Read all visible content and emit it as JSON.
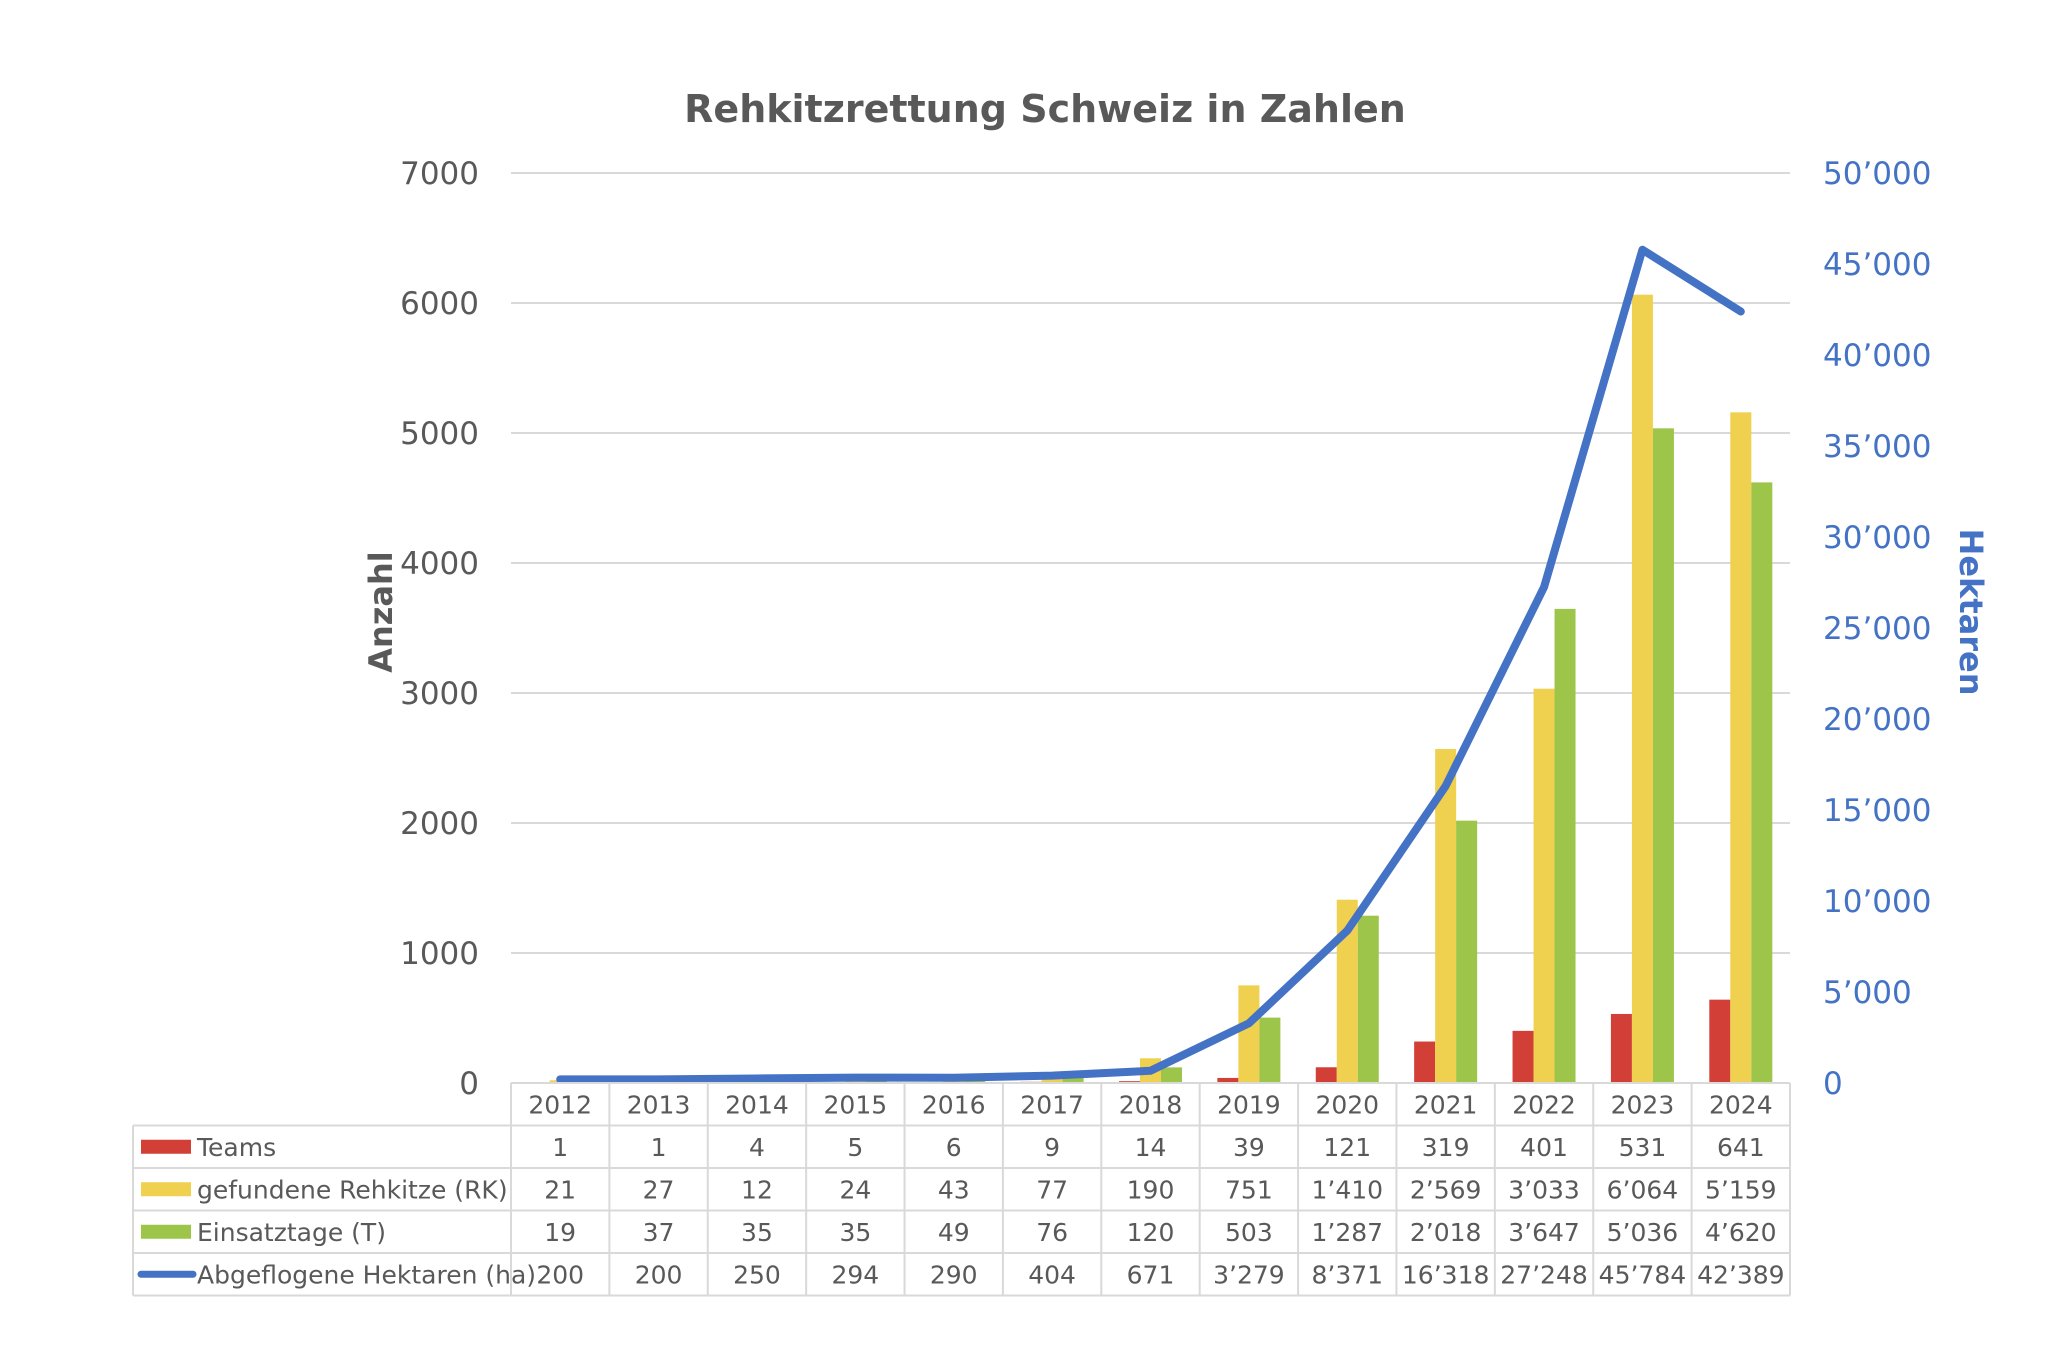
{
  "chart_data": {
    "type": "bar",
    "title": "Rehkitzrettung Schweiz in Zahlen",
    "ylabel": "Anzahl",
    "y2label": "Hektaren",
    "ylim": [
      0,
      7000
    ],
    "y2lim": [
      0,
      50000
    ],
    "yticks": [
      "0",
      "1000",
      "2000",
      "3000",
      "4000",
      "5000",
      "6000",
      "7000"
    ],
    "y2ticks": [
      "0",
      "5’000",
      "10’000",
      "15’000",
      "20’000",
      "25’000",
      "30’000",
      "35’000",
      "40’000",
      "45’000",
      "50’000"
    ],
    "grid": true,
    "legend": "data-table-below",
    "categories": [
      "2012",
      "2013",
      "2014",
      "2015",
      "2016",
      "2017",
      "2018",
      "2019",
      "2020",
      "2021",
      "2022",
      "2023",
      "2024"
    ],
    "series": [
      {
        "name": "Teams",
        "type": "bar",
        "axis": "left",
        "color": "#D13F36",
        "values": [
          1,
          1,
          4,
          5,
          6,
          9,
          14,
          39,
          121,
          319,
          401,
          531,
          641
        ],
        "labels": [
          "1",
          "1",
          "4",
          "5",
          "6",
          "9",
          "14",
          "39",
          "121",
          "319",
          "401",
          "531",
          "641"
        ]
      },
      {
        "name": "gefundene Rehkitze (RK)",
        "type": "bar",
        "axis": "left",
        "color": "#EFD04F",
        "values": [
          21,
          27,
          12,
          24,
          43,
          77,
          190,
          751,
          1410,
          2569,
          3033,
          6064,
          5159
        ],
        "labels": [
          "21",
          "27",
          "12",
          "24",
          "43",
          "77",
          "190",
          "751",
          "1’410",
          "2’569",
          "3’033",
          "6’064",
          "5’159"
        ]
      },
      {
        "name": "Einsatztage (T)",
        "type": "bar",
        "axis": "left",
        "color": "#9CC54A",
        "values": [
          19,
          37,
          35,
          35,
          49,
          76,
          120,
          503,
          1287,
          2018,
          3647,
          5036,
          4620
        ],
        "labels": [
          "19",
          "37",
          "35",
          "35",
          "49",
          "76",
          "120",
          "503",
          "1’287",
          "2’018",
          "3’647",
          "5’036",
          "4’620"
        ]
      },
      {
        "name": "Abgeflogene Hektaren (ha)",
        "type": "line",
        "axis": "right",
        "color": "#4472C4",
        "values": [
          200,
          200,
          250,
          294,
          290,
          404,
          671,
          3279,
          8371,
          16318,
          27248,
          45784,
          42389
        ],
        "labels": [
          "200",
          "200",
          "250",
          "294",
          "290",
          "404",
          "671",
          "3’279",
          "8’371",
          "16’318",
          "27’248",
          "45’784",
          "42’389"
        ]
      }
    ]
  }
}
